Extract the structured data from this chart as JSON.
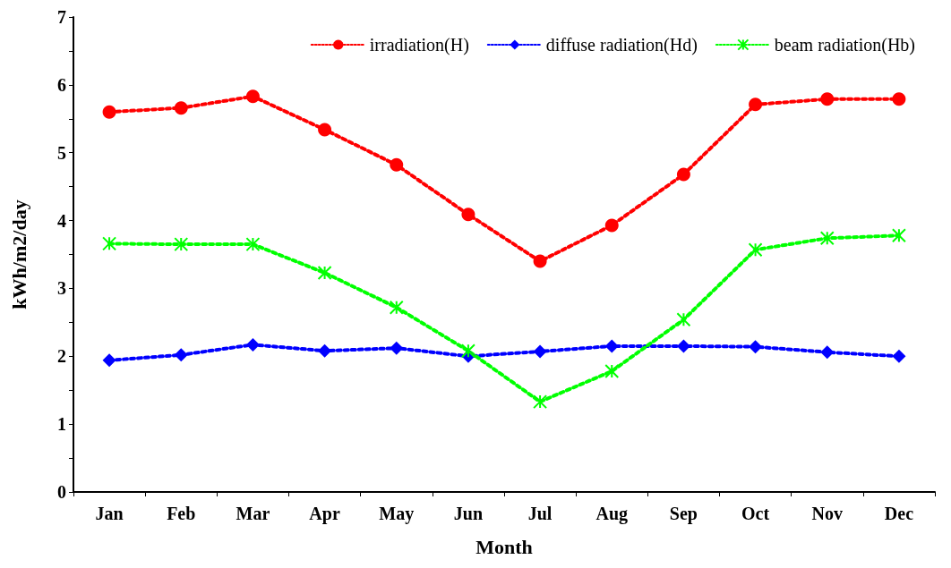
{
  "chart_data": {
    "type": "line",
    "xlabel": "Month",
    "ylabel": "kWh/m2/day",
    "categories": [
      "Jan",
      "Feb",
      "Mar",
      "Apr",
      "May",
      "Jun",
      "Jul",
      "Aug",
      "Sep",
      "Oct",
      "Nov",
      "Dec"
    ],
    "series": [
      {
        "name": "irradiation(H)",
        "color": "#ff0000",
        "marker": "circle",
        "values": [
          5.6,
          5.66,
          5.83,
          5.34,
          4.82,
          4.09,
          3.4,
          3.93,
          4.68,
          5.71,
          5.79,
          5.79
        ]
      },
      {
        "name": "diffuse radiation(Hd)",
        "color": "#0000ff",
        "marker": "diamond",
        "values": [
          1.94,
          2.02,
          2.17,
          2.08,
          2.12,
          2.0,
          2.07,
          2.15,
          2.15,
          2.14,
          2.06,
          2.0
        ]
      },
      {
        "name": "beam radiation(Hb)",
        "color": "#00ff00",
        "marker": "cross",
        "values": [
          3.66,
          3.65,
          3.65,
          3.23,
          2.72,
          2.08,
          1.33,
          1.78,
          2.54,
          3.57,
          3.74,
          3.78
        ]
      }
    ],
    "ylim": [
      0,
      7
    ],
    "yticks": [
      0,
      {
        "value": 0.5,
        "label": null
      },
      1,
      {
        "value": 1.5,
        "label": null
      },
      2,
      {
        "value": 2.5,
        "label": null
      },
      3,
      {
        "value": 3.5,
        "label": null
      },
      4,
      {
        "value": 4.5,
        "label": null
      },
      5,
      {
        "value": 5.5,
        "label": null
      },
      6,
      {
        "value": 6.5,
        "label": null
      },
      7
    ],
    "line_style": "dotted",
    "grid": false,
    "legend": "top right"
  }
}
